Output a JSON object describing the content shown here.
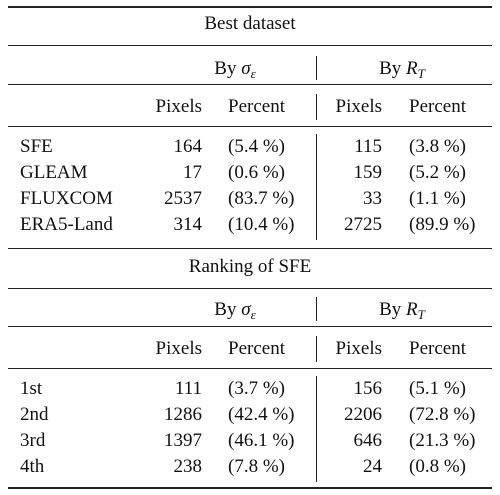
{
  "table": {
    "section1": {
      "title": "Best dataset",
      "group_sigma_prefix": "By",
      "group_sigma_symbol": "σ",
      "group_sigma_sub": "ε",
      "group_r_prefix": "By",
      "group_r_symbol": "R",
      "group_r_sub": "T",
      "col_pixels": "Pixels",
      "col_percent": "Percent",
      "rows": [
        {
          "label": "SFE",
          "px1": "164",
          "pc1": "(5.4 %)",
          "px2": "115",
          "pc2": "(3.8 %)"
        },
        {
          "label": "GLEAM",
          "px1": "17",
          "pc1": "(0.6 %)",
          "px2": "159",
          "pc2": "(5.2 %)"
        },
        {
          "label": "FLUXCOM",
          "px1": "2537",
          "pc1": "(83.7 %)",
          "px2": "33",
          "pc2": "(1.1 %)"
        },
        {
          "label": "ERA5-Land",
          "px1": "314",
          "pc1": "(10.4 %)",
          "px2": "2725",
          "pc2": "(89.9 %)"
        }
      ]
    },
    "section2": {
      "title": "Ranking of SFE",
      "rows": [
        {
          "label": "1st",
          "px1": "111",
          "pc1": "(3.7 %)",
          "px2": "156",
          "pc2": "(5.1 %)"
        },
        {
          "label": "2nd",
          "px1": "1286",
          "pc1": "(42.4 %)",
          "px2": "2206",
          "pc2": "(72.8 %)"
        },
        {
          "label": "3rd",
          "px1": "1397",
          "pc1": "(46.1 %)",
          "px2": "646",
          "pc2": "(21.3 %)"
        },
        {
          "label": "4th",
          "px1": "238",
          "pc1": "(7.8 %)",
          "px2": "24",
          "pc2": "(0.8 %)"
        }
      ]
    }
  }
}
